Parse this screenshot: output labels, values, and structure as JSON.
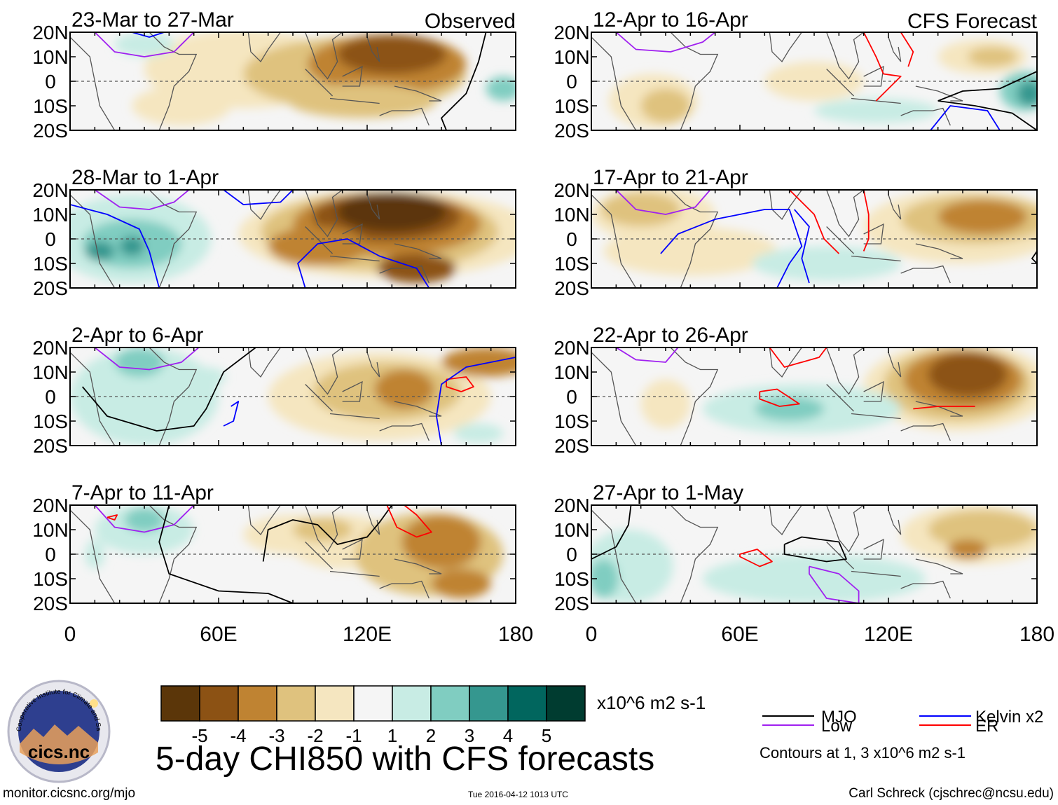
{
  "figure": {
    "title": "5-day CHI850 with CFS forecasts",
    "url": "monitor.cicsnc.org/mjo",
    "timestamp": "Tue 2016-04-12 1013 UTC",
    "credit": "Carl Schreck (cjschrec@ncsu.edu)",
    "logo_text": "cics.nc",
    "logo_ring_text": "Cooperative Institute for Climate and Satellites"
  },
  "colorbar": {
    "units": "x10^6 m2 s-1",
    "tick_labels": [
      "-5",
      "-4",
      "-3",
      "-2",
      "-1",
      "1",
      "2",
      "3",
      "4",
      "5"
    ],
    "colors": [
      "#5b3609",
      "#8c5214",
      "#bf8332",
      "#dfc27e",
      "#f5e6c0",
      "#f5f5f5",
      "#c8ece4",
      "#80cdc1",
      "#35978f",
      "#01665e",
      "#003c30"
    ]
  },
  "legend": {
    "items": [
      {
        "label": "MJO",
        "color": "#000000"
      },
      {
        "label": "Kelvin x2",
        "color": "#0000ff"
      },
      {
        "label": "Low",
        "color": "#a020f0"
      },
      {
        "label": "ER",
        "color": "#ff0000"
      }
    ],
    "note": "Contours at 1, 3 x10^6 m2 s-1"
  },
  "chart_data": [
    {
      "type": "heatmap",
      "title": "23-Mar to 27-Mar",
      "tag": "Observed",
      "column": "left",
      "row": 0,
      "x_ticks": [
        "0",
        "60E",
        "120E",
        "180"
      ],
      "y_ticks": [
        "20N",
        "10N",
        "0",
        "10S",
        "20S"
      ],
      "x_range": [
        0,
        180
      ],
      "y_range": [
        -20,
        20
      ]
    },
    {
      "type": "heatmap",
      "title": "28-Mar to 1-Apr",
      "tag": "",
      "column": "left",
      "row": 1,
      "x_ticks": [
        "0",
        "60E",
        "120E",
        "180"
      ],
      "y_ticks": [
        "20N",
        "10N",
        "0",
        "10S",
        "20S"
      ],
      "x_range": [
        0,
        180
      ],
      "y_range": [
        -20,
        20
      ]
    },
    {
      "type": "heatmap",
      "title": "2-Apr to 6-Apr",
      "tag": "",
      "column": "left",
      "row": 2,
      "x_ticks": [
        "0",
        "60E",
        "120E",
        "180"
      ],
      "y_ticks": [
        "20N",
        "10N",
        "0",
        "10S",
        "20S"
      ],
      "x_range": [
        0,
        180
      ],
      "y_range": [
        -20,
        20
      ]
    },
    {
      "type": "heatmap",
      "title": "7-Apr to 11-Apr",
      "tag": "",
      "column": "left",
      "row": 3,
      "x_ticks": [
        "0",
        "60E",
        "120E",
        "180"
      ],
      "y_ticks": [
        "20N",
        "10N",
        "0",
        "10S",
        "20S"
      ],
      "x_range": [
        0,
        180
      ],
      "y_range": [
        -20,
        20
      ]
    },
    {
      "type": "heatmap",
      "title": "12-Apr to 16-Apr",
      "tag": "CFS Forecast",
      "column": "right",
      "row": 0,
      "x_ticks": [
        "0",
        "60E",
        "120E",
        "180"
      ],
      "y_ticks": [
        "20N",
        "10N",
        "0",
        "10S",
        "20S"
      ],
      "x_range": [
        0,
        180
      ],
      "y_range": [
        -20,
        20
      ]
    },
    {
      "type": "heatmap",
      "title": "17-Apr to 21-Apr",
      "tag": "",
      "column": "right",
      "row": 1,
      "x_ticks": [
        "0",
        "60E",
        "120E",
        "180"
      ],
      "y_ticks": [
        "20N",
        "10N",
        "0",
        "10S",
        "20S"
      ],
      "x_range": [
        0,
        180
      ],
      "y_range": [
        -20,
        20
      ]
    },
    {
      "type": "heatmap",
      "title": "22-Apr to 26-Apr",
      "tag": "",
      "column": "right",
      "row": 2,
      "x_ticks": [
        "0",
        "60E",
        "120E",
        "180"
      ],
      "y_ticks": [
        "20N",
        "10N",
        "0",
        "10S",
        "20S"
      ],
      "x_range": [
        0,
        180
      ],
      "y_range": [
        -20,
        20
      ]
    },
    {
      "type": "heatmap",
      "title": "27-Apr to 1-May",
      "tag": "",
      "column": "right",
      "row": 3,
      "x_ticks": [
        "0",
        "60E",
        "120E",
        "180"
      ],
      "y_ticks": [
        "20N",
        "10N",
        "0",
        "10S",
        "20S"
      ],
      "x_range": [
        0,
        180
      ],
      "y_range": [
        -20,
        20
      ]
    }
  ]
}
